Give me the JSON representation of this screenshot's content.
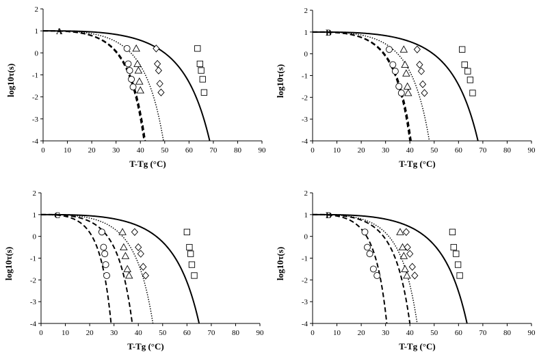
{
  "chart_data": [
    {
      "type": "scatter",
      "panel_label": "A",
      "xlabel": "T-Tg (°C)",
      "ylabel": "log10τ(s)",
      "xlim": [
        0,
        90
      ],
      "ylim": [
        -4,
        2
      ],
      "xticks": [
        "0",
        "10",
        "20",
        "30",
        "40",
        "50",
        "60",
        "70",
        "80",
        "90"
      ],
      "yticks": [
        "2",
        "1",
        "0",
        "-1",
        "-2",
        "-3",
        "-4"
      ],
      "grid": false,
      "series": [
        {
          "marker": "circle",
          "x": [
            34.5,
            35.0,
            35.6,
            36.3,
            37.0
          ],
          "y": [
            0.2,
            -0.5,
            -0.8,
            -1.2,
            -1.55
          ],
          "curve": {
            "style": "dashed",
            "x_inf": 41.5
          }
        },
        {
          "marker": "triangle",
          "x": [
            38.3,
            38.8,
            39.2,
            39.6,
            40.0
          ],
          "y": [
            0.2,
            -0.5,
            -0.8,
            -1.3,
            -1.7
          ],
          "curve": {
            "style": "dashed",
            "x_inf": 42.0
          }
        },
        {
          "marker": "diamond",
          "x": [
            46.5,
            47.0,
            47.5,
            48.0,
            48.5
          ],
          "y": [
            0.2,
            -0.5,
            -0.8,
            -1.4,
            -1.8
          ],
          "curve": {
            "style": "dotted",
            "x_inf": 49.5
          }
        },
        {
          "marker": "square",
          "x": [
            63.5,
            64.5,
            65.0,
            65.6,
            66.2
          ],
          "y": [
            0.2,
            -0.5,
            -0.8,
            -1.2,
            -1.8
          ],
          "curve": {
            "style": "solid",
            "x_inf": 68.5
          }
        }
      ]
    },
    {
      "type": "scatter",
      "panel_label": "B",
      "xlabel": "T-Tg (°C)",
      "ylabel": "log10τ(s)",
      "xlim": [
        0,
        90
      ],
      "ylim": [
        -4,
        2
      ],
      "xticks": [
        "0",
        "10",
        "20",
        "30",
        "40",
        "50",
        "60",
        "70",
        "80",
        "90"
      ],
      "yticks": [
        "2",
        "1",
        "0",
        "-1",
        "-2",
        "-3",
        "-4"
      ],
      "grid": false,
      "series": [
        {
          "marker": "circle",
          "x": [
            31.5,
            33.0,
            34.0,
            35.5,
            36.5
          ],
          "y": [
            0.2,
            -0.5,
            -0.8,
            -1.5,
            -1.8
          ],
          "curve": {
            "style": "dashed",
            "x_inf": 40.0
          }
        },
        {
          "marker": "triangle",
          "x": [
            37.5,
            38.0,
            38.5,
            39.0,
            39.3
          ],
          "y": [
            0.2,
            -0.5,
            -0.9,
            -1.5,
            -1.8
          ],
          "curve": {
            "style": "dashed",
            "x_inf": 40.5
          }
        },
        {
          "marker": "diamond",
          "x": [
            43.0,
            44.0,
            44.7,
            45.3,
            46.0
          ],
          "y": [
            0.2,
            -0.5,
            -0.8,
            -1.4,
            -1.8
          ],
          "curve": {
            "style": "dotted",
            "x_inf": 48.0
          }
        },
        {
          "marker": "square",
          "x": [
            61.5,
            62.5,
            63.8,
            64.8,
            65.8
          ],
          "y": [
            0.2,
            -0.5,
            -0.8,
            -1.2,
            -1.8
          ],
          "curve": {
            "style": "solid",
            "x_inf": 68.0
          }
        }
      ]
    },
    {
      "type": "scatter",
      "panel_label": "C",
      "xlabel": "T-Tg (°C)",
      "ylabel": "log10τ(s)",
      "xlim": [
        0,
        90
      ],
      "ylim": [
        -4,
        2
      ],
      "xticks": [
        "0",
        "10",
        "20",
        "30",
        "40",
        "50",
        "60",
        "70",
        "80",
        "90"
      ],
      "yticks": [
        "2",
        "1",
        "0",
        "-1",
        "-2",
        "-3",
        "-4"
      ],
      "grid": false,
      "series": [
        {
          "marker": "circle",
          "x": [
            25.0,
            25.7,
            26.2,
            26.6,
            27.0
          ],
          "y": [
            0.2,
            -0.5,
            -0.8,
            -1.3,
            -1.8
          ],
          "curve": {
            "style": "dashed",
            "x_inf": 28.8
          }
        },
        {
          "marker": "triangle",
          "x": [
            33.5,
            34.0,
            34.7,
            35.5,
            36.2
          ],
          "y": [
            0.2,
            -0.5,
            -0.9,
            -1.5,
            -1.8
          ],
          "curve": {
            "style": "dashed",
            "x_inf": 37.5
          }
        },
        {
          "marker": "diamond",
          "x": [
            38.5,
            40.0,
            41.0,
            42.0,
            43.0
          ],
          "y": [
            0.2,
            -0.5,
            -0.8,
            -1.4,
            -1.8
          ],
          "curve": {
            "style": "dotted",
            "x_inf": 46.0
          }
        },
        {
          "marker": "square",
          "x": [
            60.0,
            61.0,
            61.5,
            62.0,
            63.0
          ],
          "y": [
            0.2,
            -0.5,
            -0.8,
            -1.3,
            -1.8
          ],
          "curve": {
            "style": "solid",
            "x_inf": 65.0
          }
        }
      ]
    },
    {
      "type": "scatter",
      "panel_label": "D",
      "xlabel": "T-Tg (°C)",
      "ylabel": "log10τ(s)",
      "xlim": [
        0,
        90
      ],
      "ylim": [
        -4,
        2
      ],
      "xticks": [
        "0",
        "10",
        "20",
        "30",
        "40",
        "50",
        "60",
        "70",
        "80",
        "90"
      ],
      "yticks": [
        "2",
        "1",
        "0",
        "-1",
        "-2",
        "-3",
        "-4"
      ],
      "grid": false,
      "series": [
        {
          "marker": "circle",
          "x": [
            21.5,
            22.5,
            23.5,
            25.0,
            26.5
          ],
          "y": [
            0.2,
            -0.5,
            -0.8,
            -1.5,
            -1.8
          ],
          "curve": {
            "style": "dashed",
            "x_inf": 30.5
          }
        },
        {
          "marker": "triangle",
          "x": [
            36.0,
            37.0,
            37.5,
            38.0,
            38.8
          ],
          "y": [
            0.2,
            -0.5,
            -0.9,
            -1.5,
            -1.8
          ],
          "curve": {
            "style": "dashed",
            "x_inf": 40.0
          }
        },
        {
          "marker": "diamond",
          "x": [
            38.5,
            39.0,
            40.0,
            41.0,
            42.0
          ],
          "y": [
            0.2,
            -0.5,
            -0.8,
            -1.4,
            -1.8
          ],
          "curve": {
            "style": "dotted",
            "x_inf": 43.0
          }
        },
        {
          "marker": "square",
          "x": [
            57.5,
            58.0,
            59.0,
            59.8,
            60.5
          ],
          "y": [
            0.2,
            -0.5,
            -0.8,
            -1.3,
            -1.8
          ],
          "curve": {
            "style": "solid",
            "x_inf": 63.5
          }
        }
      ]
    }
  ]
}
